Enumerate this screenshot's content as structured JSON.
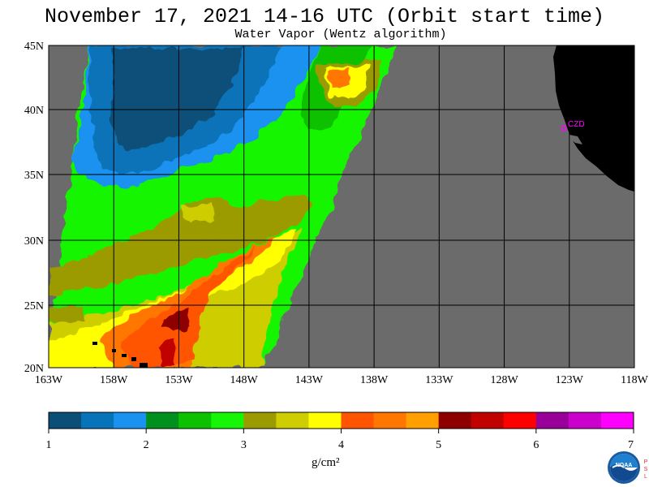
{
  "header": {
    "title": "November 17, 2021  14-16 UTC  (Orbit start time)",
    "subtitle": "Water Vapor (Wentz algorithm)"
  },
  "map": {
    "lat_labels": [
      "45N",
      "40N",
      "35N",
      "30N",
      "25N",
      "20N"
    ],
    "lon_labels": [
      "163W",
      "158W",
      "153W",
      "148W",
      "143W",
      "138W",
      "133W",
      "128W",
      "123W",
      "118W"
    ],
    "station_label": "CZD",
    "land_color": "#000000",
    "no_data_color": "#6b6b6b",
    "station_color": "#ff00ff"
  },
  "colorbar": {
    "ticks": [
      "1",
      "2",
      "3",
      "4",
      "5",
      "6",
      "7"
    ],
    "unit": "g/cm²",
    "colors": [
      "#0b4f78",
      "#0773b8",
      "#1a92f0",
      "#00901d",
      "#0cc100",
      "#17f506",
      "#9b9b00",
      "#cdcd00",
      "#ffff00",
      "#ff5500",
      "#ff7700",
      "#ffa000",
      "#8e0000",
      "#c10000",
      "#ff0000",
      "#990099",
      "#cc00cc",
      "#ff00ff"
    ]
  }
}
